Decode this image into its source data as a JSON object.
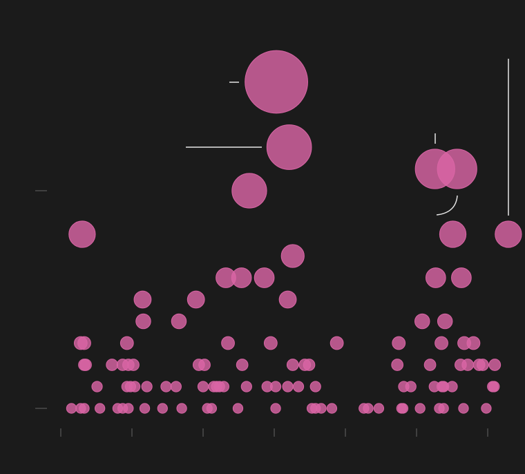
{
  "chart_data": {
    "type": "scatter",
    "color": "#d965a5",
    "x": [
      0.15,
      0.28,
      0.33,
      0.55,
      0.8,
      0.87,
      0.95,
      1.18,
      1.43,
      1.7,
      2.06,
      2.12,
      2.49,
      3.02,
      3.53,
      3.58,
      3.66,
      3.81,
      4.26,
      4.32,
      4.47,
      4.79,
      4.81,
      5.05,
      5.32,
      5.38,
      5.66,
      5.98,
      0.51,
      0.93,
      0.98,
      1.04,
      1.21,
      1.48,
      1.62,
      2.0,
      2.15,
      2.19,
      2.23,
      2.29,
      2.61,
      2.9,
      3.02,
      3.19,
      3.34,
      3.58,
      4.82,
      4.92,
      5.25,
      5.36,
      5.38,
      5.5,
      6.07,
      6.09,
      0.33,
      0.35,
      0.72,
      0.87,
      0.95,
      1.02,
      1.94,
      2.02,
      2.55,
      3.26,
      3.43,
      3.49,
      4.73,
      5.19,
      5.62,
      5.72,
      5.88,
      5.93,
      6.1,
      0.28,
      0.33,
      0.93,
      2.35,
      2.95,
      3.88,
      4.75,
      5.35,
      5.67,
      5.8,
      1.16,
      1.66,
      5.08,
      5.4,
      1.15,
      1.9,
      3.19,
      2.32,
      2.54,
      2.86,
      5.27,
      5.63,
      3.26,
      0.3,
      5.51,
      6.29,
      2.65,
      5.26,
      5.57,
      3.21,
      3.03
    ],
    "values": [
      1,
      1,
      1,
      1,
      1,
      1,
      1,
      1,
      1,
      1,
      1,
      1,
      1,
      1,
      1,
      1,
      1,
      1,
      1,
      1,
      1,
      1,
      1,
      1,
      1,
      1,
      1,
      1,
      2,
      2,
      2,
      2,
      2,
      2,
      2,
      2,
      2,
      2,
      2,
      2,
      2,
      2,
      2,
      2,
      2,
      2,
      2,
      2,
      2,
      2,
      2,
      2,
      2,
      2,
      3,
      3,
      3,
      3,
      3,
      3,
      3,
      3,
      3,
      3,
      3,
      3,
      3,
      3,
      3,
      3,
      3,
      3,
      3,
      4,
      4,
      4,
      4,
      4,
      4,
      4,
      4,
      4,
      4,
      5,
      5,
      5,
      5,
      6,
      6,
      6,
      7,
      7,
      7,
      7,
      7,
      8,
      9,
      9,
      9,
      11,
      12,
      12,
      13,
      16
    ],
    "xlim": [
      0,
      6.5
    ],
    "xticks": [
      0,
      1,
      2,
      3,
      4,
      5,
      6
    ],
    "ylim": [
      0,
      17
    ],
    "yticks": [
      1,
      11
    ]
  }
}
